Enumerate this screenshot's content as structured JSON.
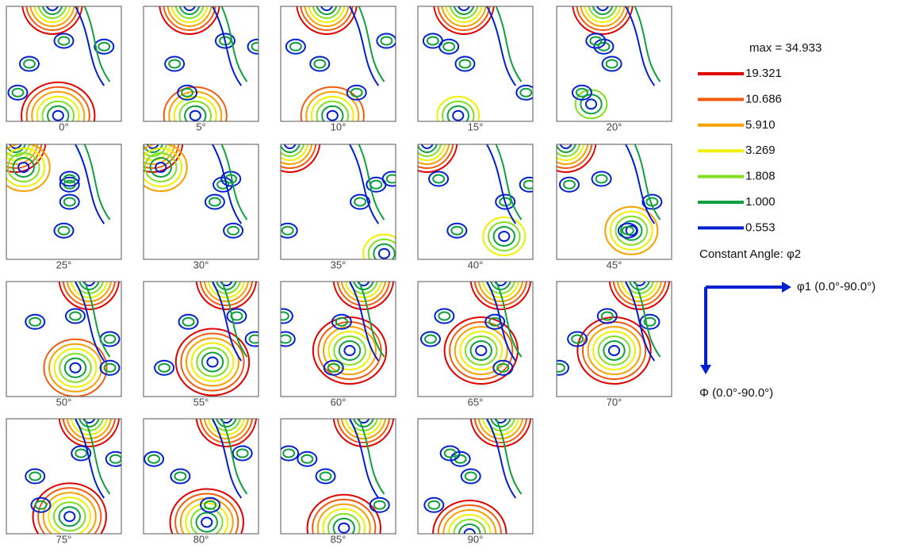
{
  "sections": [
    {
      "label": "0°"
    },
    {
      "label": "5°"
    },
    {
      "label": "10°"
    },
    {
      "label": "15°"
    },
    {
      "label": "20°"
    },
    {
      "label": "25°"
    },
    {
      "label": "30°"
    },
    {
      "label": "35°"
    },
    {
      "label": "40°"
    },
    {
      "label": "45°"
    },
    {
      "label": "50°"
    },
    {
      "label": "55°"
    },
    {
      "label": "60°"
    },
    {
      "label": "65°"
    },
    {
      "label": "70°"
    },
    {
      "label": "75°"
    },
    {
      "label": "80°"
    },
    {
      "label": "85°"
    },
    {
      "label": "90°"
    }
  ],
  "legend": {
    "max_label": "max = 34.933",
    "levels": [
      {
        "label": "19.321",
        "color": "#e00000"
      },
      {
        "label": "10.686",
        "color": "#f05a10"
      },
      {
        "label": "5.910",
        "color": "#f8a000"
      },
      {
        "label": "3.269",
        "color": "#f0f000"
      },
      {
        "label": "1.808",
        "color": "#80e020"
      },
      {
        "label": "1.000",
        "color": "#10a040"
      },
      {
        "label": "0.553",
        "color": "#0020d0"
      }
    ],
    "constant_angle": "Constant Angle: φ2"
  },
  "axes": {
    "horizontal": "φ1 (0.0°-90.0°)",
    "vertical": "Φ (0.0°-90.0°)"
  }
}
